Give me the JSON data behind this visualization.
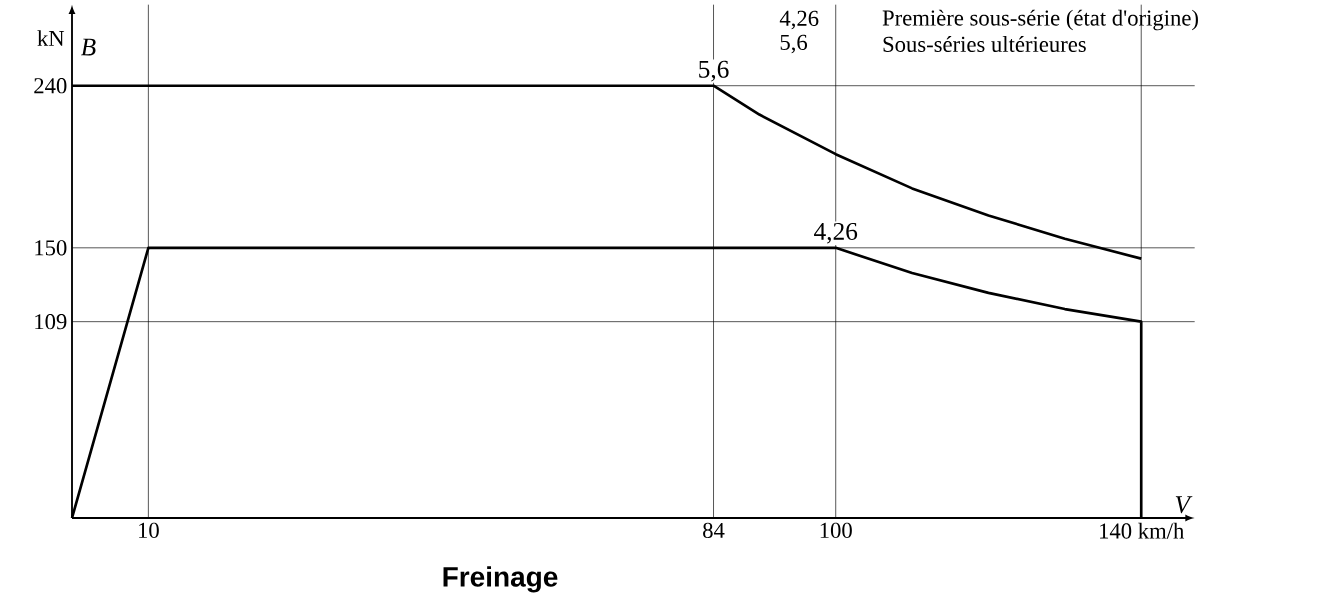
{
  "chart_data": {
    "type": "line",
    "title": "Freinage",
    "xlabel": "V",
    "ylabel": "B",
    "annotations": [
      "Première sous-série (état d'origine)",
      "Sous-séries ultérieures",
      "kN"
    ],
    "series": [
      {
        "name": "4,26",
        "color": "#000000",
        "x": [
          0,
          10,
          100,
          110,
          120,
          130,
          140,
          140
        ],
        "values": [
          0,
          150,
          150,
          136,
          125,
          116,
          109,
          0
        ]
      },
      {
        "name": "5,6",
        "color": "#000000",
        "x": [
          0,
          84,
          90,
          100,
          110,
          120,
          130,
          140
        ],
        "values": [
          240,
          240,
          224,
          202,
          183,
          168,
          155,
          144
        ]
      }
    ],
    "xlim": [
      0,
      147
    ],
    "ylim": [
      0,
      285
    ],
    "xticks": [
      10,
      84,
      100,
      {
        "value": 140,
        "label": "140 km/h"
      }
    ],
    "yticks": [
      109,
      150,
      240
    ],
    "grid": true
  }
}
